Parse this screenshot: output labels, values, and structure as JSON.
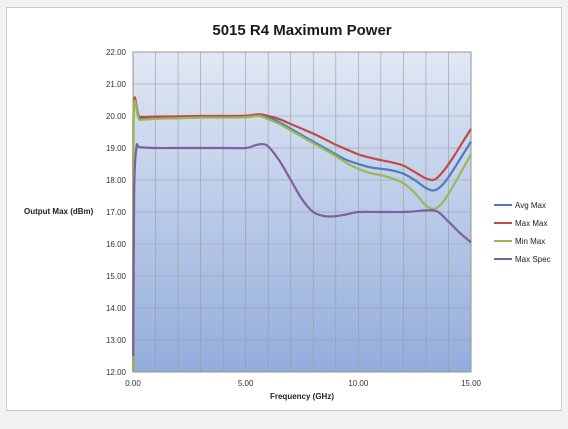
{
  "chart_data": {
    "type": "line",
    "title": "5015 R4 Maximum Power",
    "xlabel": "Frequency (GHz)",
    "ylabel": "Output Max (dBm)",
    "xlim": [
      0,
      15
    ],
    "ylim": [
      12,
      22
    ],
    "x_ticks": [
      "0.00",
      "5.00",
      "10.00",
      "15.00"
    ],
    "y_ticks": [
      "12.00",
      "13.00",
      "14.00",
      "15.00",
      "16.00",
      "17.00",
      "18.00",
      "19.00",
      "20.00",
      "21.00",
      "22.00"
    ],
    "grid": true,
    "legend_position": "right",
    "series": [
      {
        "name": "Avg Max",
        "color": "#4a7ebb",
        "points": [
          [
            0.01,
            12.0
          ],
          [
            0.02,
            19.95
          ],
          [
            0.3,
            19.92
          ],
          [
            1,
            19.94
          ],
          [
            2,
            19.96
          ],
          [
            3,
            19.97
          ],
          [
            4,
            19.97
          ],
          [
            5,
            19.98
          ],
          [
            5.6,
            20.02
          ],
          [
            6,
            19.95
          ],
          [
            6.5,
            19.8
          ],
          [
            7,
            19.6
          ],
          [
            7.5,
            19.4
          ],
          [
            8,
            19.2
          ],
          [
            8.5,
            19.0
          ],
          [
            9,
            18.8
          ],
          [
            9.5,
            18.62
          ],
          [
            10,
            18.5
          ],
          [
            10.5,
            18.4
          ],
          [
            11,
            18.35
          ],
          [
            11.5,
            18.3
          ],
          [
            12,
            18.2
          ],
          [
            12.5,
            18.0
          ],
          [
            13,
            17.75
          ],
          [
            13.4,
            17.68
          ],
          [
            13.8,
            17.9
          ],
          [
            14.2,
            18.3
          ],
          [
            14.6,
            18.75
          ],
          [
            15,
            19.2
          ]
        ]
      },
      {
        "name": "Max Max",
        "color": "#be4b48",
        "points": [
          [
            0.01,
            12.0
          ],
          [
            0.02,
            20.0
          ],
          [
            0.3,
            19.97
          ],
          [
            1,
            19.98
          ],
          [
            2,
            19.99
          ],
          [
            3,
            20.0
          ],
          [
            4,
            20.0
          ],
          [
            5,
            20.01
          ],
          [
            5.6,
            20.05
          ],
          [
            6,
            20.0
          ],
          [
            6.5,
            19.9
          ],
          [
            7,
            19.75
          ],
          [
            7.5,
            19.6
          ],
          [
            8,
            19.45
          ],
          [
            8.5,
            19.28
          ],
          [
            9,
            19.1
          ],
          [
            9.5,
            18.95
          ],
          [
            10,
            18.8
          ],
          [
            10.5,
            18.7
          ],
          [
            11,
            18.62
          ],
          [
            11.5,
            18.55
          ],
          [
            12,
            18.45
          ],
          [
            12.5,
            18.25
          ],
          [
            13,
            18.05
          ],
          [
            13.4,
            18.02
          ],
          [
            13.8,
            18.3
          ],
          [
            14.2,
            18.7
          ],
          [
            14.6,
            19.15
          ],
          [
            15,
            19.6
          ]
        ]
      },
      {
        "name": "Min Max",
        "color": "#98b954",
        "points": [
          [
            0.01,
            12.0
          ],
          [
            0.02,
            19.9
          ],
          [
            0.3,
            19.88
          ],
          [
            1,
            19.91
          ],
          [
            2,
            19.93
          ],
          [
            3,
            19.95
          ],
          [
            4,
            19.95
          ],
          [
            5,
            19.96
          ],
          [
            5.6,
            20.0
          ],
          [
            6,
            19.9
          ],
          [
            6.5,
            19.75
          ],
          [
            7,
            19.55
          ],
          [
            7.5,
            19.35
          ],
          [
            8,
            19.15
          ],
          [
            8.5,
            18.95
          ],
          [
            9,
            18.75
          ],
          [
            9.5,
            18.52
          ],
          [
            10,
            18.35
          ],
          [
            10.5,
            18.22
          ],
          [
            11,
            18.15
          ],
          [
            11.5,
            18.05
          ],
          [
            12,
            17.9
          ],
          [
            12.5,
            17.6
          ],
          [
            13,
            17.2
          ],
          [
            13.4,
            17.1
          ],
          [
            13.8,
            17.35
          ],
          [
            14.2,
            17.8
          ],
          [
            14.6,
            18.3
          ],
          [
            15,
            18.8
          ]
        ]
      },
      {
        "name": "Max Spec",
        "color": "#7d60a0",
        "points": [
          [
            0.01,
            12.5
          ],
          [
            0.05,
            17.5
          ],
          [
            0.15,
            19.0
          ],
          [
            0.3,
            19.02
          ],
          [
            1,
            19.0
          ],
          [
            2,
            19.0
          ],
          [
            3,
            19.0
          ],
          [
            4,
            19.0
          ],
          [
            5,
            19.0
          ],
          [
            5.4,
            19.08
          ],
          [
            5.7,
            19.12
          ],
          [
            6,
            19.05
          ],
          [
            6.5,
            18.6
          ],
          [
            7,
            18.0
          ],
          [
            7.5,
            17.4
          ],
          [
            8,
            17.0
          ],
          [
            8.5,
            16.87
          ],
          [
            9,
            16.87
          ],
          [
            9.5,
            16.93
          ],
          [
            10,
            17.0
          ],
          [
            11,
            17.0
          ],
          [
            12,
            17.0
          ],
          [
            12.5,
            17.02
          ],
          [
            13,
            17.05
          ],
          [
            13.5,
            17.02
          ],
          [
            14,
            16.7
          ],
          [
            14.5,
            16.35
          ],
          [
            15,
            16.05
          ]
        ]
      }
    ]
  }
}
